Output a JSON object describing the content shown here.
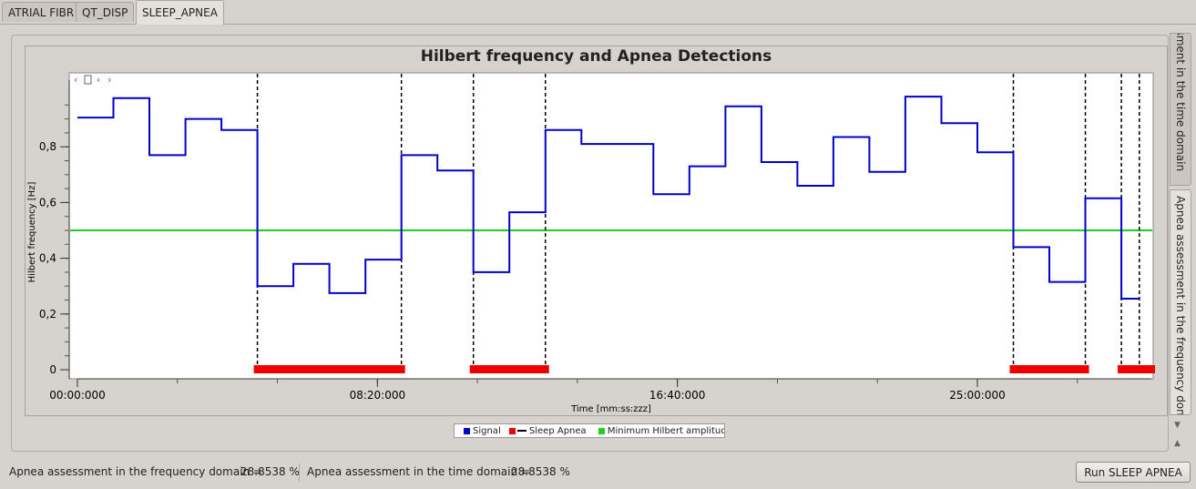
{
  "tabs": [
    {
      "label": "ATRIAL FIBR"
    },
    {
      "label": "QT_DISP"
    },
    {
      "label": "SLEEP_APNEA",
      "active": true
    }
  ],
  "side_tabs": [
    {
      "label": "Apnea assessment in the time domain"
    },
    {
      "label": "Apnea assessment in the frequency domain",
      "active": true
    }
  ],
  "status": {
    "freq_label": "Apnea assessment in the frequency domain =",
    "freq_value": "28.8538 %",
    "time_label": "Apnea assessment in the time domain =",
    "time_value": "28.8538 %"
  },
  "run_button": "Run SLEEP APNEA",
  "colors": {
    "signal": "#0000cc",
    "apnea": "#ee0000",
    "threshold": "#22cc22",
    "detection_line": "#000000"
  },
  "chart_data": {
    "type": "line",
    "title": "Hilbert frequency and Apnea Detections",
    "xlabel": "Time [mm:ss:zzz]",
    "ylabel": "Hilbert frequency [Hz]",
    "x_range_seconds": [
      0,
      1790
    ],
    "ylim": [
      0,
      1
    ],
    "x_ticks": [
      {
        "t": 0,
        "label": "00:00:000"
      },
      {
        "t": 500,
        "label": "08:20:000"
      },
      {
        "t": 1000,
        "label": "16:40:000"
      },
      {
        "t": 1500,
        "label": "25:00:000"
      }
    ],
    "y_ticks": [
      {
        "v": 0,
        "label": "0"
      },
      {
        "v": 0.2,
        "label": "0,2"
      },
      {
        "v": 0.4,
        "label": "0,4"
      },
      {
        "v": 0.6,
        "label": "0,6"
      },
      {
        "v": 0.8,
        "label": "0,8"
      }
    ],
    "series": [
      {
        "name": "Signal",
        "steps": [
          [
            0,
            60,
            0.905
          ],
          [
            60,
            120,
            0.975
          ],
          [
            120,
            180,
            0.77
          ],
          [
            180,
            240,
            0.9
          ],
          [
            240,
            300,
            0.86
          ],
          [
            300,
            360,
            0.3
          ],
          [
            360,
            420,
            0.38
          ],
          [
            420,
            480,
            0.275
          ],
          [
            480,
            540,
            0.395
          ],
          [
            540,
            600,
            0.77
          ],
          [
            600,
            660,
            0.715
          ],
          [
            660,
            720,
            0.35
          ],
          [
            720,
            780,
            0.565
          ],
          [
            780,
            840,
            0.86
          ],
          [
            840,
            900,
            0.81
          ],
          [
            900,
            960,
            0.81
          ],
          [
            960,
            1020,
            0.63
          ],
          [
            1020,
            1080,
            0.73
          ],
          [
            1080,
            1140,
            0.945
          ],
          [
            1140,
            1200,
            0.745
          ],
          [
            1200,
            1260,
            0.66
          ],
          [
            1260,
            1320,
            0.835
          ],
          [
            1320,
            1380,
            0.71
          ],
          [
            1380,
            1440,
            0.98
          ],
          [
            1440,
            1500,
            0.885
          ],
          [
            1500,
            1560,
            0.78
          ],
          [
            1560,
            1620,
            0.44
          ],
          [
            1620,
            1680,
            0.315
          ],
          [
            1680,
            1740,
            0.615
          ],
          [
            1740,
            1770,
            0.255
          ]
        ]
      },
      {
        "name": "Sleep Apnea",
        "intervals": [
          [
            300,
            540
          ],
          [
            660,
            780
          ],
          [
            1560,
            1680
          ],
          [
            1740,
            1790
          ]
        ]
      },
      {
        "name": "Minimum Hilbert amplitude",
        "value": 0.5
      }
    ],
    "detection_lines": [
      300,
      540,
      660,
      780,
      1560,
      1680,
      1740,
      1770
    ],
    "legend": [
      "Signal",
      "Sleep Apnea",
      "Minimum Hilbert amplitude"
    ],
    "legend_position": "bottom-center"
  }
}
